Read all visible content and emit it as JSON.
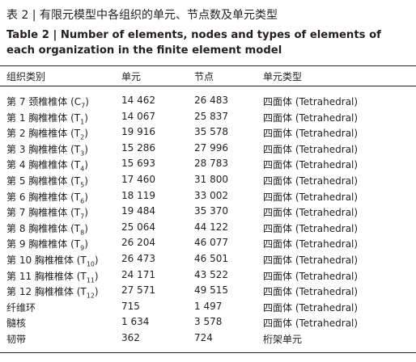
{
  "header": {
    "title_cn": "表 2 | 有限元模型中各组织的单元、节点数及单元类型",
    "title_en": "Table 2  |  Number of elements, nodes and types of elements of each organization in the finite element model"
  },
  "table": {
    "columns": [
      "组织类别",
      "单元",
      "节点",
      "单元类型"
    ],
    "rows": [
      [
        [
          "第 7 颈椎椎体 (C",
          "7",
          ")"
        ],
        "14 462",
        "26 483",
        "四面体 (Tetrahedral)"
      ],
      [
        [
          "第 1 胸椎椎体 (T",
          "1",
          ")"
        ],
        "14 067",
        "25 837",
        "四面体 (Tetrahedral)"
      ],
      [
        [
          "第 2 胸椎椎体 (T",
          "2",
          ")"
        ],
        "19 916",
        "35 578",
        "四面体 (Tetrahedral)"
      ],
      [
        [
          "第 3 胸椎椎体 (T",
          "3",
          ")"
        ],
        "15 286",
        "27 996",
        "四面体 (Tetrahedral)"
      ],
      [
        [
          "第 4 胸椎椎体 (T",
          "4",
          ")"
        ],
        "15 693",
        "28 783",
        "四面体 (Tetrahedral)"
      ],
      [
        [
          "第 5 胸椎椎体 (T",
          "5",
          ")"
        ],
        "17 460",
        "31 800",
        "四面体 (Tetrahedral)"
      ],
      [
        [
          "第 6 胸椎椎体 (T",
          "6",
          ")"
        ],
        "18 119",
        "33 002",
        "四面体 (Tetrahedral)"
      ],
      [
        [
          "第 7 胸椎椎体 (T",
          "7",
          ")"
        ],
        "19 484",
        "35 370",
        "四面体 (Tetrahedral)"
      ],
      [
        [
          "第 8 胸椎椎体 (T",
          "8",
          ")"
        ],
        "25 064",
        "44 122",
        "四面体 (Tetrahedral)"
      ],
      [
        [
          "第 9 胸椎椎体 (T",
          "9",
          ")"
        ],
        "26 204",
        "46 077",
        "四面体 (Tetrahedral)"
      ],
      [
        [
          "第 10 胸椎椎体 (T",
          "10",
          ")"
        ],
        "26 473",
        "46 501",
        "四面体 (Tetrahedral)"
      ],
      [
        [
          "第 11 胸椎椎体 (T",
          "11",
          ")"
        ],
        "24 171",
        "43 522",
        "四面体 (Tetrahedral)"
      ],
      [
        [
          "第 12 胸椎椎体 (T",
          "12",
          ")"
        ],
        "27 571",
        "49 515",
        "四面体 (Tetrahedral)"
      ],
      [
        [
          "纤维环"
        ],
        "715",
        "1 497",
        "四面体 (Tetrahedral)"
      ],
      [
        [
          "髓核"
        ],
        "1 634",
        "3 578",
        "四面体 (Tetrahedral)"
      ],
      [
        [
          "韧带"
        ],
        "362",
        "724",
        "桁架单元"
      ]
    ]
  }
}
